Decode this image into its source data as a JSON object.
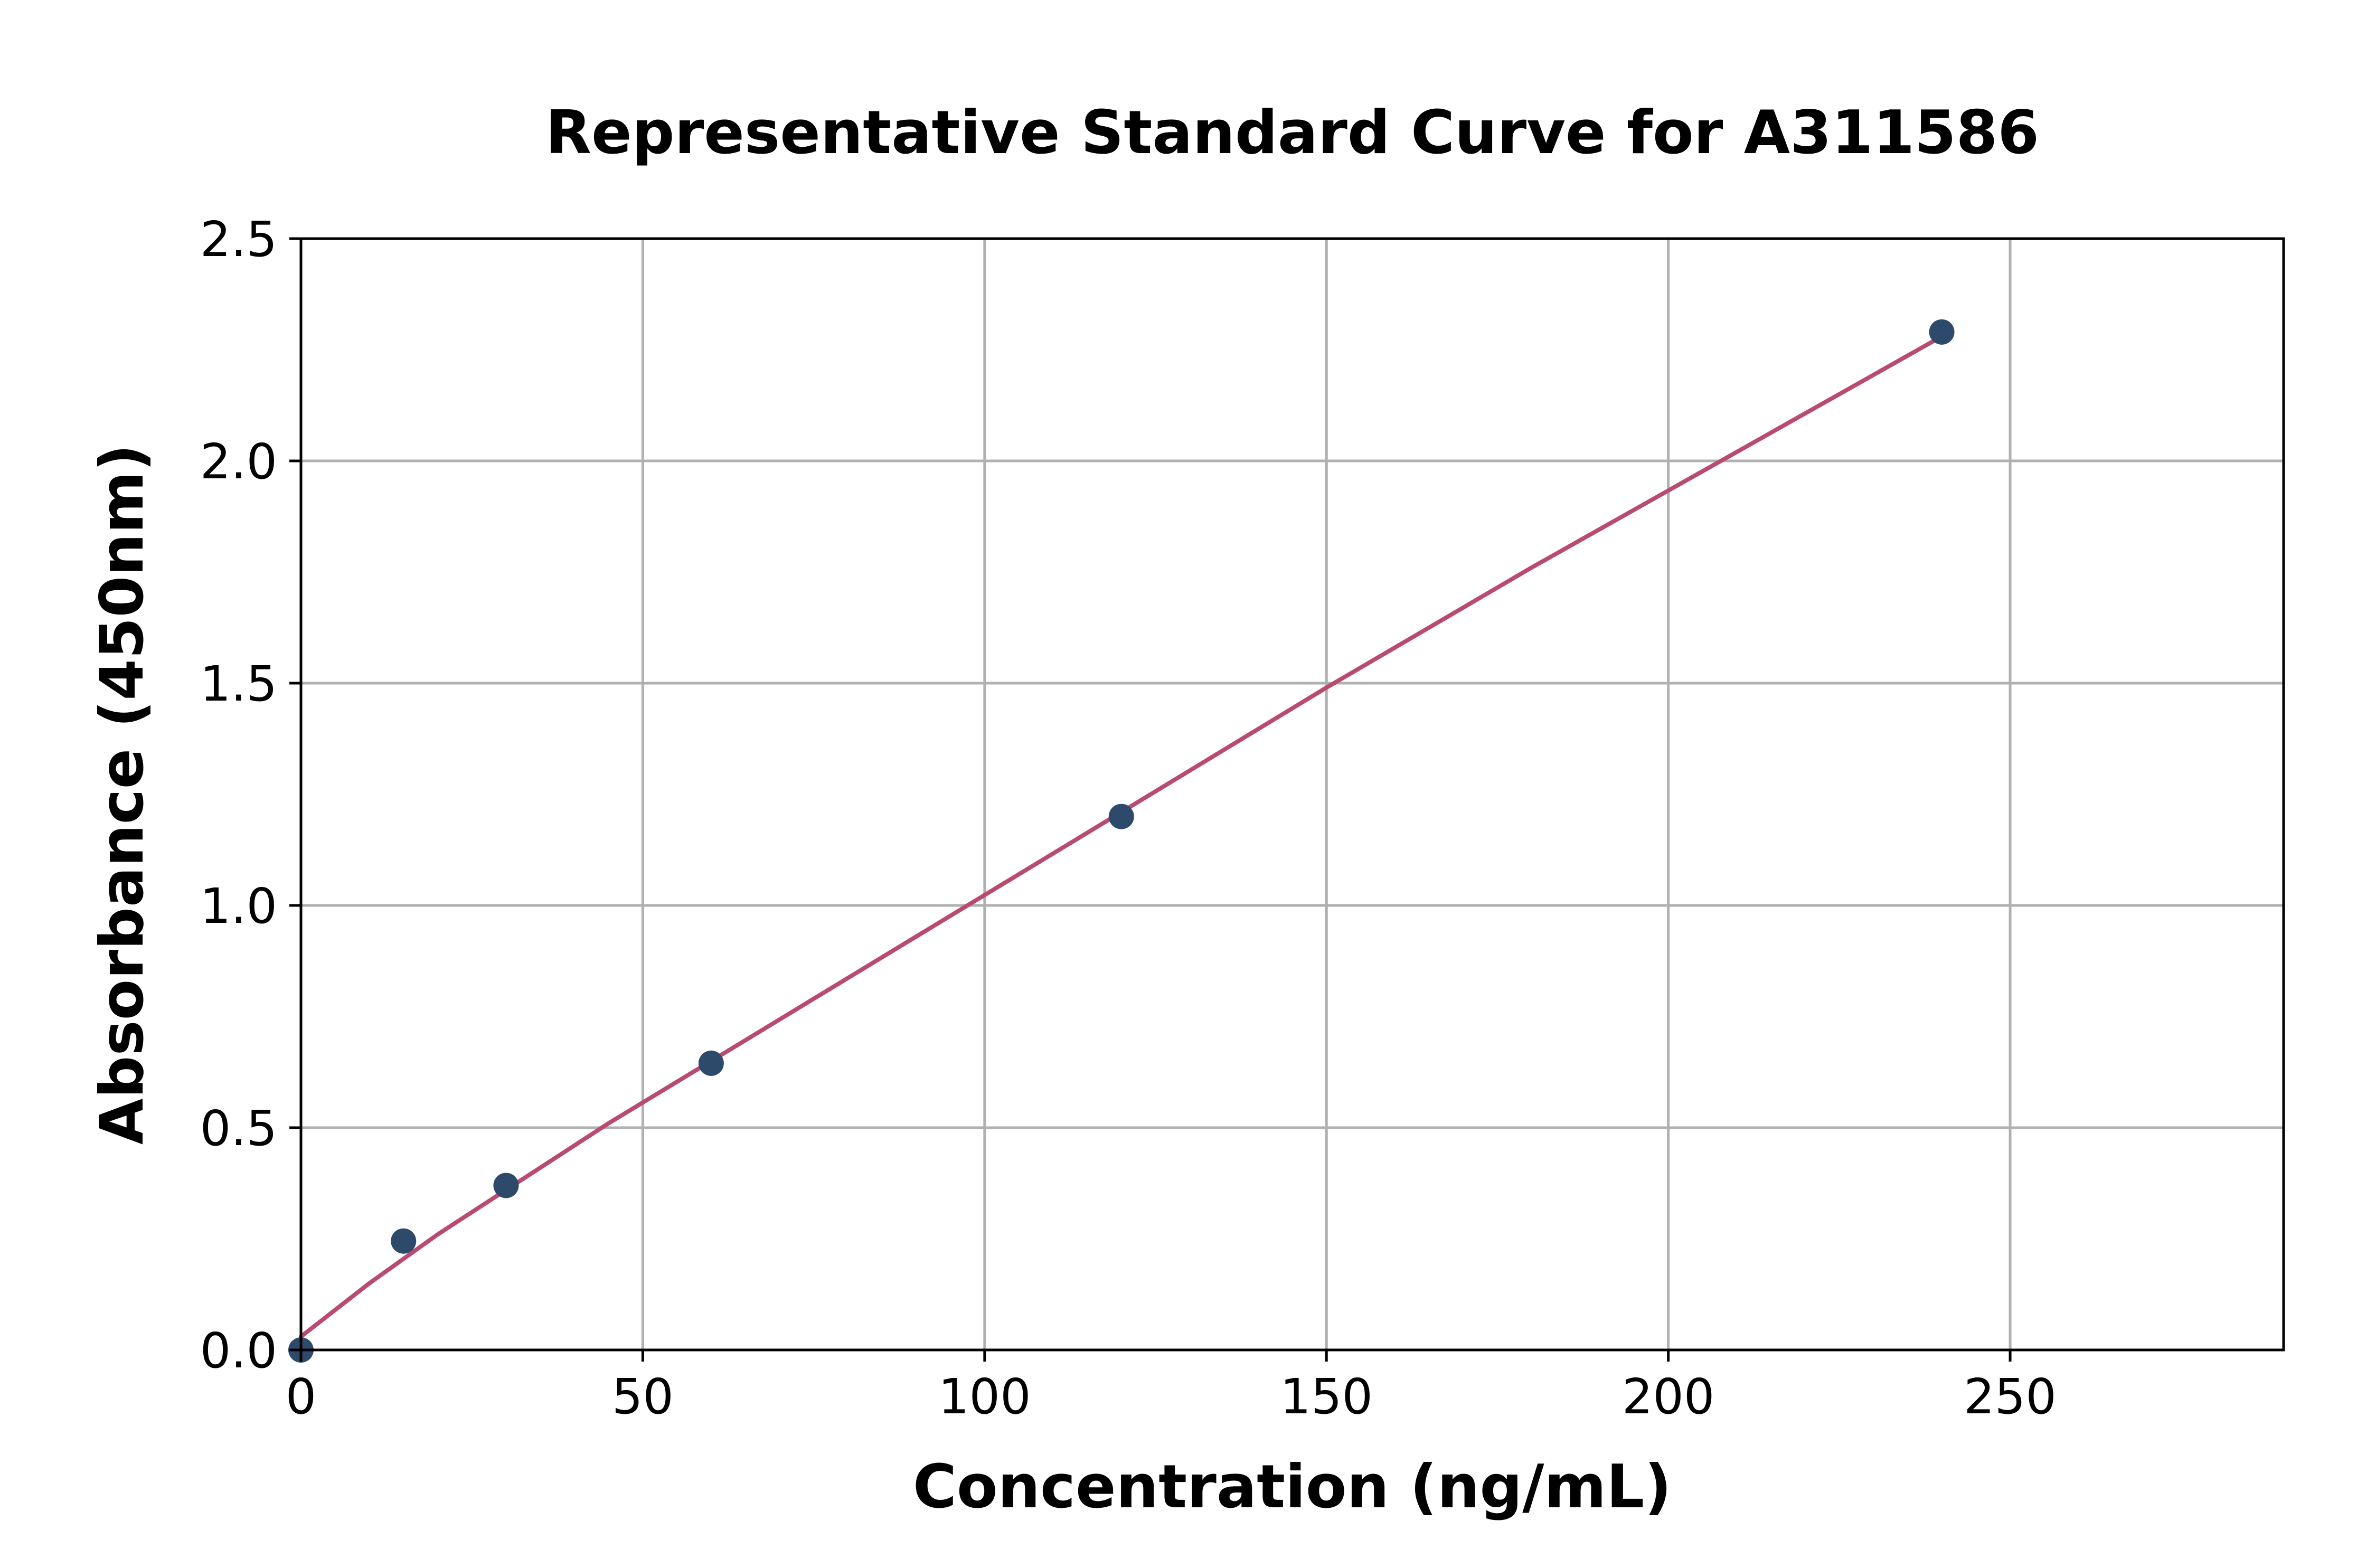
{
  "chart_data": {
    "type": "scatter",
    "title": "Representative Standard Curve for A311586",
    "xlabel": "Concentration (ng/mL)",
    "ylabel": "Absorbance (450nm)",
    "xlim": [
      0,
      290
    ],
    "ylim": [
      0,
      2.5
    ],
    "xticks": [
      0,
      50,
      100,
      150,
      200,
      250
    ],
    "xtick_labels": [
      "0",
      "50",
      "100",
      "150",
      "200",
      "250"
    ],
    "yticks": [
      0,
      0.5,
      1.0,
      1.5,
      2.0,
      2.5
    ],
    "ytick_labels": [
      "0.0",
      "0.5",
      "1.0",
      "1.5",
      "2.0",
      "2.5"
    ],
    "grid": true,
    "series": [
      {
        "kind": "points",
        "color": "#2e4a6b",
        "x": [
          0,
          15,
          30,
          60,
          120,
          240
        ],
        "y": [
          0.0,
          0.245,
          0.37,
          0.645,
          1.2,
          2.29
        ]
      },
      {
        "kind": "fit-line",
        "color": "#b94a72",
        "x": [
          0,
          10,
          20,
          30,
          45,
          60,
          90,
          120,
          150,
          180,
          210,
          240
        ],
        "y": [
          0.03,
          0.15,
          0.26,
          0.36,
          0.51,
          0.65,
          0.93,
          1.21,
          1.49,
          1.76,
          2.02,
          2.28
        ]
      }
    ]
  }
}
